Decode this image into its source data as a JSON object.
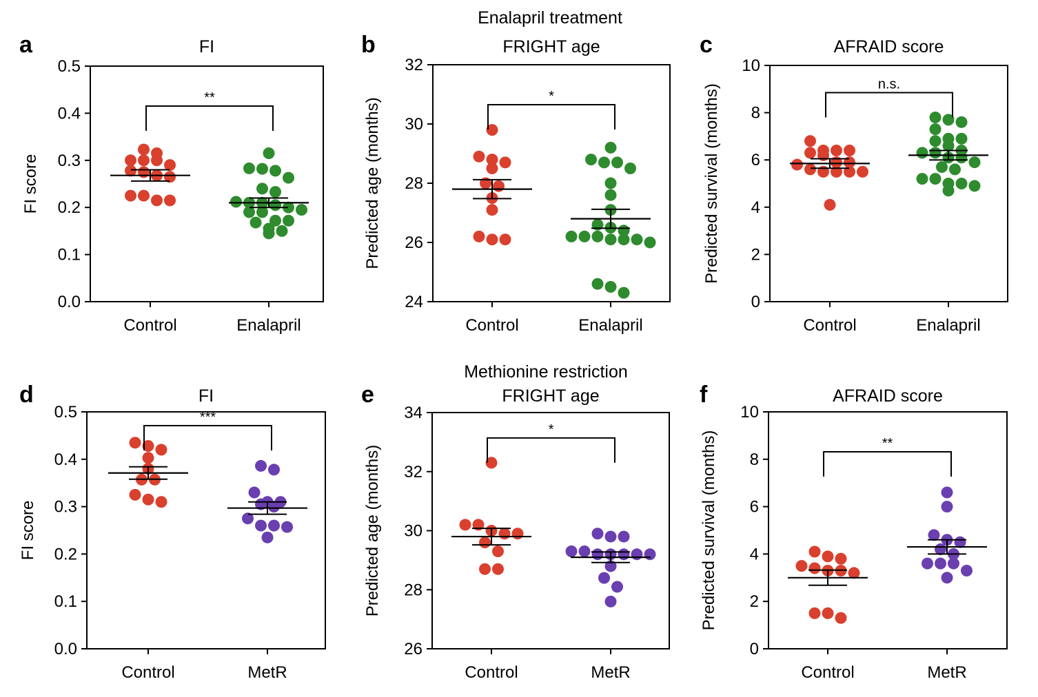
{
  "figure": {
    "group_titles": [
      "Enalapril treatment",
      "Methionine restriction"
    ],
    "colors": {
      "Control": "#d9402e",
      "Enalapril": "#2e8b2e",
      "MetR": "#6a3fb0"
    }
  },
  "chart_data": [
    {
      "panel": "a",
      "title": "FI",
      "type": "scatter",
      "ylabel": "FI score",
      "ylim": [
        0,
        0.5
      ],
      "yticks": [
        0.0,
        0.1,
        0.2,
        0.3,
        0.4,
        0.5
      ],
      "tick_labels": [
        "0.0",
        "0.1",
        "0.2",
        "0.3",
        "0.4",
        "0.5"
      ],
      "categories": [
        "Control",
        "Enalapril"
      ],
      "series": [
        {
          "group": "Control",
          "values": [
            0.323,
            0.315,
            0.3,
            0.3,
            0.3,
            0.29,
            0.278,
            0.275,
            0.268,
            0.265,
            0.225,
            0.225,
            0.215,
            0.215
          ],
          "mean": 0.268,
          "sem": 0.012
        },
        {
          "group": "Enalapril",
          "values": [
            0.315,
            0.283,
            0.282,
            0.278,
            0.263,
            0.24,
            0.233,
            0.212,
            0.21,
            0.21,
            0.205,
            0.2,
            0.195,
            0.19,
            0.19,
            0.172,
            0.172,
            0.168,
            0.155,
            0.15,
            0.145
          ],
          "mean": 0.21,
          "sem": 0.01
        }
      ],
      "significance": "**"
    },
    {
      "panel": "b",
      "title": "FRIGHT age",
      "type": "scatter",
      "ylabel": "Predicted age (months)",
      "ylim": [
        24,
        32
      ],
      "yticks": [
        24,
        26,
        28,
        30,
        32
      ],
      "tick_labels": [
        "24",
        "26",
        "28",
        "30",
        "32"
      ],
      "categories": [
        "Control",
        "Enalapril"
      ],
      "series": [
        {
          "group": "Control",
          "values": [
            29.8,
            28.9,
            28.8,
            28.7,
            28.5,
            28.0,
            27.9,
            27.5,
            27.1,
            26.2,
            26.1,
            26.1
          ],
          "mean": 27.8,
          "sem": 0.32
        },
        {
          "group": "Enalapril",
          "values": [
            29.2,
            28.8,
            28.7,
            28.7,
            28.5,
            28.0,
            27.6,
            27.1,
            26.6,
            26.5,
            26.4,
            26.2,
            26.2,
            26.2,
            26.1,
            26.1,
            26.1,
            26.0,
            24.6,
            24.5,
            24.3
          ],
          "mean": 26.8,
          "sem": 0.32
        }
      ],
      "significance": "*"
    },
    {
      "panel": "c",
      "title": "AFRAID score",
      "type": "scatter",
      "ylabel": "Predicted survival (months)",
      "ylim": [
        0,
        10
      ],
      "yticks": [
        0,
        2,
        4,
        6,
        8,
        10
      ],
      "tick_labels": [
        "0",
        "2",
        "4",
        "6",
        "8",
        "10"
      ],
      "categories": [
        "Control",
        "Enalapril"
      ],
      "series": [
        {
          "group": "Control",
          "values": [
            6.8,
            6.4,
            6.4,
            6.4,
            6.3,
            6.2,
            5.9,
            5.9,
            5.8,
            5.6,
            5.5,
            5.5,
            5.5,
            5.5,
            4.1
          ],
          "mean": 5.85,
          "sem": 0.2
        },
        {
          "group": "Enalapril",
          "values": [
            7.8,
            7.7,
            7.6,
            7.3,
            6.9,
            6.9,
            6.8,
            6.6,
            6.4,
            6.3,
            6.3,
            6.1,
            6.1,
            5.9,
            5.7,
            5.6,
            5.2,
            5.2,
            5.0,
            5.0,
            4.9,
            4.7
          ],
          "mean": 6.2,
          "sem": 0.2
        }
      ],
      "significance": "n.s."
    },
    {
      "panel": "d",
      "title": "FI",
      "type": "scatter",
      "ylabel": "FI score",
      "ylim": [
        0,
        0.5
      ],
      "yticks": [
        0.0,
        0.1,
        0.2,
        0.3,
        0.4,
        0.5
      ],
      "tick_labels": [
        "0.0",
        "0.1",
        "0.2",
        "0.3",
        "0.4",
        "0.5"
      ],
      "categories": [
        "Control",
        "MetR"
      ],
      "series": [
        {
          "group": "Control",
          "values": [
            0.435,
            0.428,
            0.42,
            0.403,
            0.38,
            0.357,
            0.357,
            0.325,
            0.315,
            0.31
          ],
          "mean": 0.371,
          "sem": 0.013
        },
        {
          "group": "MetR",
          "values": [
            0.386,
            0.378,
            0.33,
            0.31,
            0.31,
            0.305,
            0.3,
            0.275,
            0.26,
            0.26,
            0.257,
            0.235
          ],
          "mean": 0.297,
          "sem": 0.013
        }
      ],
      "significance": "***"
    },
    {
      "panel": "e",
      "title": "FRIGHT age",
      "type": "scatter",
      "ylabel": "Predicted age (months)",
      "ylim": [
        26,
        34
      ],
      "yticks": [
        26,
        28,
        30,
        32,
        34
      ],
      "tick_labels": [
        "26",
        "28",
        "30",
        "32",
        "34"
      ],
      "categories": [
        "Control",
        "MetR"
      ],
      "series": [
        {
          "group": "Control",
          "values": [
            32.3,
            30.2,
            30.2,
            30.0,
            29.9,
            29.9,
            29.6,
            29.3,
            28.7,
            28.7
          ],
          "mean": 29.8,
          "sem": 0.28
        },
        {
          "group": "MetR",
          "values": [
            29.9,
            29.8,
            29.8,
            29.3,
            29.3,
            29.2,
            29.2,
            29.2,
            29.2,
            29.2,
            28.8,
            28.4,
            28.1,
            27.6
          ],
          "mean": 29.1,
          "sem": 0.18
        }
      ],
      "significance": "*"
    },
    {
      "panel": "f",
      "title": "AFRAID score",
      "type": "scatter",
      "ylabel": "Predicted survival (months)",
      "ylim": [
        0,
        10
      ],
      "yticks": [
        0,
        2,
        4,
        6,
        8,
        10
      ],
      "tick_labels": [
        "0",
        "2",
        "4",
        "6",
        "8",
        "10"
      ],
      "categories": [
        "Control",
        "MetR"
      ],
      "series": [
        {
          "group": "Control",
          "values": [
            4.1,
            3.9,
            3.8,
            3.5,
            3.4,
            3.3,
            3.3,
            3.2,
            1.5,
            1.5,
            1.3
          ],
          "mean": 3.0,
          "sem": 0.32
        },
        {
          "group": "MetR",
          "values": [
            6.6,
            6.0,
            4.8,
            4.6,
            4.5,
            4.2,
            4.0,
            3.6,
            3.6,
            3.6,
            3.3,
            3.0
          ],
          "mean": 4.3,
          "sem": 0.3
        }
      ],
      "significance": "**"
    }
  ]
}
